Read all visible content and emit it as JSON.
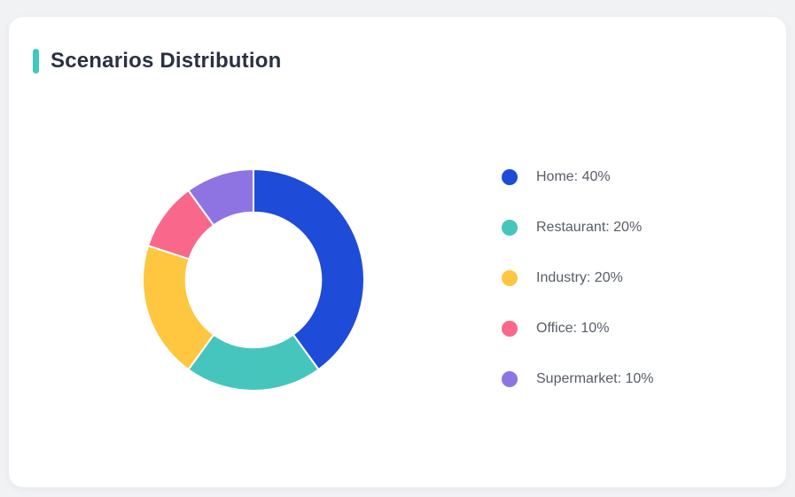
{
  "page": {
    "background": "#f1f2f4"
  },
  "card": {
    "background": "#ffffff"
  },
  "header": {
    "title": "Scenarios Distribution",
    "accent_color": "#3ec8be"
  },
  "chart_data": {
    "type": "pie",
    "subtype": "donut",
    "title": "Scenarios Distribution",
    "categories": [
      "Home",
      "Restaurant",
      "Industry",
      "Office",
      "Supermarket"
    ],
    "values": [
      40,
      20,
      20,
      10,
      10
    ],
    "unit": "%",
    "colors": [
      "#1e4bd8",
      "#46c5bc",
      "#ffc63f",
      "#f9688a",
      "#8e74e3"
    ],
    "start_angle_deg": 0,
    "direction": "clockwise",
    "inner_radius_ratio": 0.61,
    "slice_gap_color": "#ffffff",
    "legend": {
      "position": "right",
      "items": [
        {
          "label": "Home: 40%",
          "color": "#1e4bd8"
        },
        {
          "label": "Restaurant: 20%",
          "color": "#46c5bc"
        },
        {
          "label": "Industry: 20%",
          "color": "#ffc63f"
        },
        {
          "label": "Office: 10%",
          "color": "#f9688a"
        },
        {
          "label": "Supermarket: 10%",
          "color": "#8e74e3"
        }
      ]
    }
  }
}
